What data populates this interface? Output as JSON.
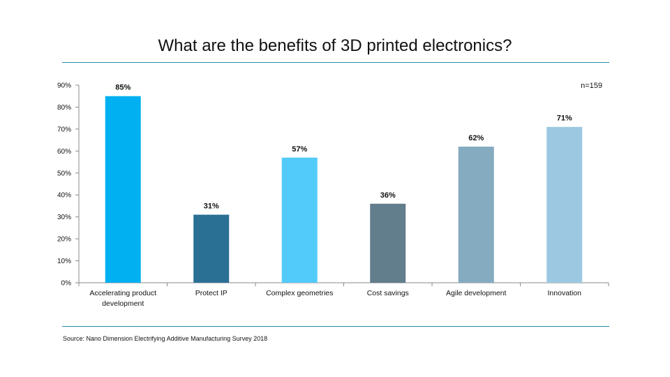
{
  "title": "What are the benefits of 3D printed electronics?",
  "source": "Source: Nano Dimension Electrifying Additive Manufacturing Survey 2018",
  "chart_data": {
    "type": "bar",
    "title": "What are the benefits of 3D printed electronics?",
    "xlabel": "",
    "ylabel": "",
    "ylim": [
      0,
      90
    ],
    "yticks": [
      "0%",
      "10%",
      "20%",
      "30%",
      "40%",
      "50%",
      "60%",
      "70%",
      "80%",
      "90%"
    ],
    "annotation": "n=159",
    "grid": false,
    "legend": "none",
    "categories": [
      [
        "Accelerating product",
        "development"
      ],
      [
        "Protect IP"
      ],
      [
        "Complex geometries"
      ],
      [
        "Cost savings"
      ],
      [
        "Agile development"
      ],
      [
        "Innovation"
      ]
    ],
    "values": [
      85,
      31,
      57,
      36,
      62,
      71
    ],
    "value_labels": [
      "85%",
      "31%",
      "57%",
      "36%",
      "62%",
      "71%"
    ],
    "colors": [
      "#00b0f0",
      "#2a6f94",
      "#52cbfa",
      "#627d8b",
      "#84abc0",
      "#9cc9e1"
    ]
  }
}
